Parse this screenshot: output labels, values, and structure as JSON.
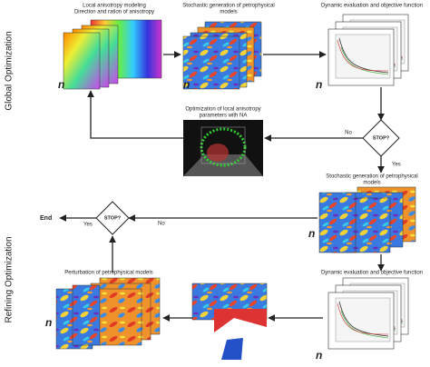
{
  "side_labels": [
    "Global Optimization",
    "Refining Optimization"
  ],
  "top": {
    "anisotropy": {
      "title": "Local anisotropy modeling",
      "subtitle": "Direction and ration of anisotropy",
      "count": "n"
    },
    "stochastic": {
      "title": "Stochastic generation of petrophysical",
      "title2": "models",
      "count": "n"
    },
    "dynamic": {
      "title": "Dynamic evaluation and objective function",
      "count": "n"
    },
    "optimization": {
      "title": "Optimization of local anisotropy",
      "title2": "parameters with NA"
    },
    "stop": "STOP?",
    "no": "No",
    "yes": "Yes"
  },
  "bottom": {
    "stochastic": {
      "title": "Stochastic generation of petrophysical",
      "title2": "models",
      "count": "n"
    },
    "stop": "STOP?",
    "yes": "Yes",
    "no": "No",
    "end": "End",
    "perturbation": {
      "title": "Perturbation of petrophysical models",
      "count": "n"
    },
    "dynamic": {
      "title": "Dynamic evaluation and objective function",
      "count": "n"
    }
  }
}
